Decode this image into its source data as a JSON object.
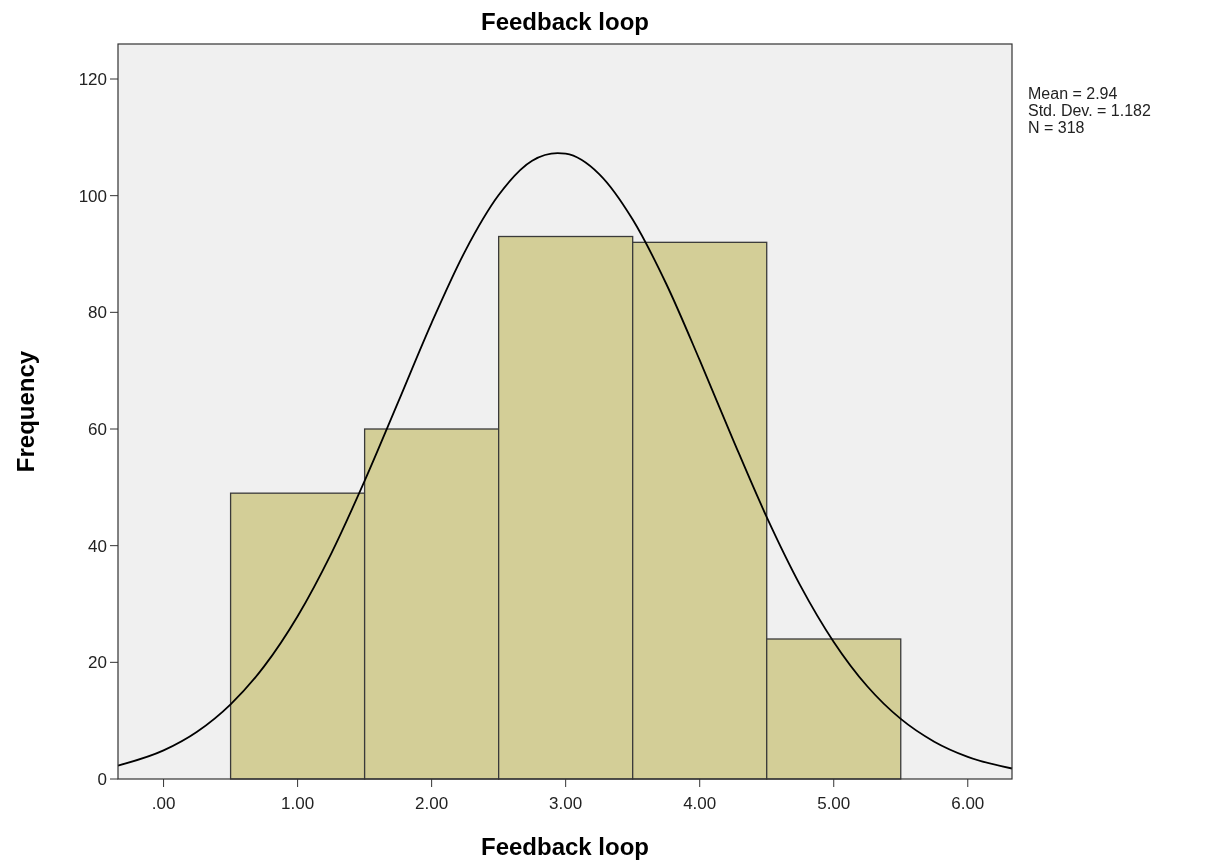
{
  "chart_data": {
    "type": "histogram",
    "title": "Feedback loop",
    "xlabel": "Feedback loop",
    "ylabel": "Frequency",
    "bins": [
      0.5,
      1.5,
      2.5,
      3.5,
      4.5,
      5.5
    ],
    "values": [
      49,
      60,
      93,
      92,
      24
    ],
    "color": "#d3ce97",
    "series": [
      {
        "type": "line",
        "color": "#000000",
        "x": [
          -0.34,
          0,
          0.25,
          0.5,
          0.75,
          1,
          1.25,
          1.5,
          1.75,
          2,
          2.25,
          2.5,
          2.75,
          2.94,
          3,
          3.25,
          3.5,
          3.75,
          4,
          4.25,
          4.5,
          4.75,
          5,
          5.25,
          5.5,
          5.75,
          6,
          6.33
        ],
        "values": [
          2.3,
          4.9,
          8.1,
          12.8,
          19.3,
          27.9,
          38.6,
          51.1,
          64.6,
          78.2,
          90.5,
          100.1,
          106,
          107.3,
          107.2,
          103.7,
          95.9,
          84.9,
          71.8,
          58.1,
          44.9,
          33.2,
          23.5,
          15.9,
          10.3,
          6.4,
          3.8,
          1.8
        ]
      }
    ],
    "xlim": [
      -0.34,
      6.33
    ],
    "ylim": [
      0,
      126
    ],
    "xticks": [
      {
        "value": 0,
        "label": ".00"
      },
      {
        "value": 1,
        "label": "1.00"
      },
      {
        "value": 2,
        "label": "2.00"
      },
      {
        "value": 3,
        "label": "3.00"
      },
      {
        "value": 4,
        "label": "4.00"
      },
      {
        "value": 5,
        "label": "5.00"
      },
      {
        "value": 6,
        "label": "6.00"
      }
    ],
    "yticks": [
      0,
      20,
      40,
      60,
      80,
      100,
      120
    ],
    "annotations": [
      "Mean = 2.94",
      "Std. Dev. = 1.182",
      "N = 318"
    ],
    "grid": false
  }
}
